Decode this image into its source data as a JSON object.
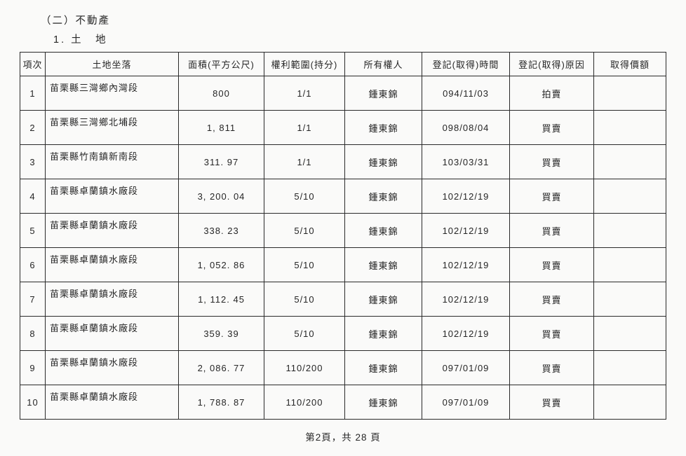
{
  "headings": {
    "section": "（二）不動產",
    "subsection": "1. 土　地"
  },
  "columns": {
    "idx": "項次",
    "location": "土地坐落",
    "area": "面積(平方公尺)",
    "share": "權利範圍(持分)",
    "owner": "所有權人",
    "date": "登記(取得)時間",
    "reason": "登記(取得)原因",
    "price": "取得價額"
  },
  "rows": [
    {
      "idx": "1",
      "location": "苗栗縣三灣鄉內灣段",
      "area": "800",
      "share": "1/1",
      "owner": "鍾東錦",
      "date": "094/11/03",
      "reason": "拍賣",
      "price": ""
    },
    {
      "idx": "2",
      "location": "苗栗縣三灣鄉北埔段",
      "area": "1, 811",
      "share": "1/1",
      "owner": "鍾東錦",
      "date": "098/08/04",
      "reason": "買賣",
      "price": ""
    },
    {
      "idx": "3",
      "location": "苗栗縣竹南鎮新南段",
      "area": "311. 97",
      "share": "1/1",
      "owner": "鍾東錦",
      "date": "103/03/31",
      "reason": "買賣",
      "price": ""
    },
    {
      "idx": "4",
      "location": "苗栗縣卓蘭鎮水廠段",
      "area": "3, 200. 04",
      "share": "5/10",
      "owner": "鍾東錦",
      "date": "102/12/19",
      "reason": "買賣",
      "price": ""
    },
    {
      "idx": "5",
      "location": "苗栗縣卓蘭鎮水廠段",
      "area": "338. 23",
      "share": "5/10",
      "owner": "鍾東錦",
      "date": "102/12/19",
      "reason": "買賣",
      "price": ""
    },
    {
      "idx": "6",
      "location": "苗栗縣卓蘭鎮水廠段",
      "area": "1, 052. 86",
      "share": "5/10",
      "owner": "鍾東錦",
      "date": "102/12/19",
      "reason": "買賣",
      "price": ""
    },
    {
      "idx": "7",
      "location": "苗栗縣卓蘭鎮水廠段",
      "area": "1, 112. 45",
      "share": "5/10",
      "owner": "鍾東錦",
      "date": "102/12/19",
      "reason": "買賣",
      "price": ""
    },
    {
      "idx": "8",
      "location": "苗栗縣卓蘭鎮水廠段",
      "area": "359. 39",
      "share": "5/10",
      "owner": "鍾東錦",
      "date": "102/12/19",
      "reason": "買賣",
      "price": ""
    },
    {
      "idx": "9",
      "location": "苗栗縣卓蘭鎮水廠段",
      "area": "2, 086. 77",
      "share": "110/200",
      "owner": "鍾東錦",
      "date": "097/01/09",
      "reason": "買賣",
      "price": ""
    },
    {
      "idx": "10",
      "location": "苗栗縣卓蘭鎮水廠段",
      "area": "1, 788. 87",
      "share": "110/200",
      "owner": "鍾東錦",
      "date": "097/01/09",
      "reason": "買賣",
      "price": ""
    }
  ],
  "footer": "第2頁，共 28 頁"
}
